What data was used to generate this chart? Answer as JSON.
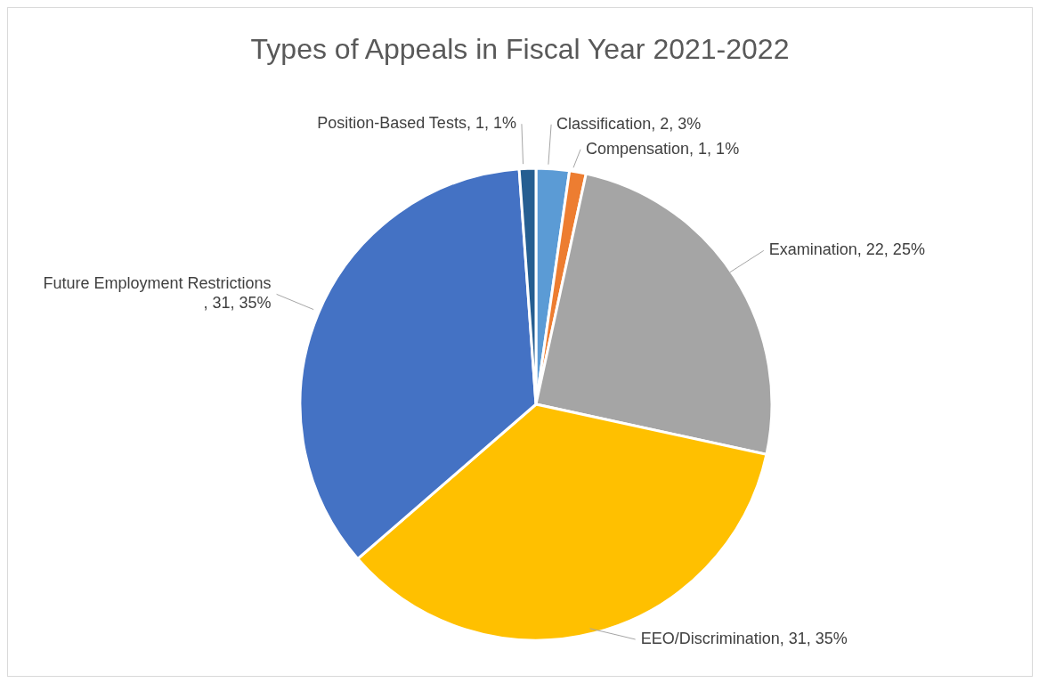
{
  "chart_data": {
    "type": "pie",
    "title": "Types of Appeals in Fiscal Year 2021-2022",
    "categories": [
      "Classification",
      "Compensation",
      "Examination",
      "EEO/Discrimination",
      "Future Employment Restrictions",
      "Position-Based Tests"
    ],
    "values": [
      2,
      1,
      22,
      31,
      31,
      1
    ],
    "colors": [
      "#5b9bd5",
      "#ed7d31",
      "#a5a5a5",
      "#ffc000",
      "#4472c4",
      "#255e91"
    ],
    "value_labels": [
      ", 2, 3%",
      ", 1, 1%",
      ", 22, 25%",
      ", 31, 35%",
      ", 31, 35%",
      ", 1, 1%"
    ],
    "legend": false
  }
}
